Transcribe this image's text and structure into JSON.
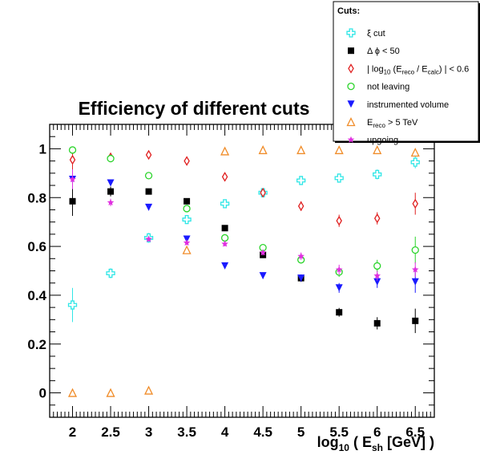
{
  "chart_data": {
    "type": "scatter",
    "title": "Efficiency of different cuts",
    "xlabel": {
      "base": "log",
      "sub": "10",
      "mid": " ( E",
      "sub2": "sh",
      "tail": " [GeV] )"
    },
    "ylabel": "",
    "xlim": [
      1.7,
      6.75
    ],
    "ylim": [
      -0.1,
      1.1
    ],
    "xticks": [
      "2",
      "2.5",
      "3",
      "3.5",
      "4",
      "4.5",
      "5",
      "5.5",
      "6",
      "6.5"
    ],
    "yticks": [
      "0",
      "0.2",
      "0.4",
      "0.6",
      "0.8",
      "1"
    ],
    "grid": false,
    "legend": {
      "position": "top-right",
      "header": "Cuts:",
      "entries": [
        {
          "key": "xi",
          "parts": [
            {
              "t": "ξ cut"
            }
          ]
        },
        {
          "key": "dphi",
          "parts": [
            {
              "t": "Δ ϕ < 50"
            }
          ]
        },
        {
          "key": "logratio",
          "parts": [
            {
              "t": "| log"
            },
            {
              "t": "10",
              "sub": true
            },
            {
              "t": " (E"
            },
            {
              "t": "reco",
              "sub": true
            },
            {
              "t": " / E"
            },
            {
              "t": "calc",
              "sub": true
            },
            {
              "t": ") | < 0.6"
            }
          ]
        },
        {
          "key": "notleaving",
          "parts": [
            {
              "t": "not leaving"
            }
          ]
        },
        {
          "key": "instrumented",
          "parts": [
            {
              "t": "instrumented volume"
            }
          ]
        },
        {
          "key": "ereco",
          "parts": [
            {
              "t": "E"
            },
            {
              "t": "reco",
              "sub": true
            },
            {
              "t": " > 5 TeV"
            }
          ]
        },
        {
          "key": "upgoing",
          "parts": [
            {
              "t": "upgoing"
            }
          ]
        }
      ]
    },
    "series": [
      {
        "key": "xi",
        "marker": "open-cross",
        "color": "#2ee6e6",
        "x": [
          2,
          2.5,
          3,
          3.5,
          4,
          4.5,
          5,
          5.5,
          6,
          6.5
        ],
        "y": [
          0.36,
          0.49,
          0.635,
          0.71,
          0.775,
          0.82,
          0.87,
          0.88,
          0.895,
          0.945
        ],
        "err": [
          0.07,
          0.02,
          0.02,
          0.015,
          0.012,
          0.01,
          0.015,
          0.015,
          0.02,
          0.025
        ]
      },
      {
        "key": "dphi",
        "marker": "filled-square",
        "color": "#000000",
        "x": [
          2,
          2.5,
          3,
          3.5,
          4,
          4.5,
          5,
          5.5,
          6,
          6.5
        ],
        "y": [
          0.785,
          0.825,
          0.825,
          0.785,
          0.675,
          0.565,
          0.47,
          0.33,
          0.285,
          0.295
        ],
        "err": [
          0.06,
          0.02,
          0.01,
          0.006,
          0.012,
          0.012,
          0.015,
          0.018,
          0.025,
          0.05
        ]
      },
      {
        "key": "logratio",
        "marker": "open-diamond",
        "color": "#e02020",
        "x": [
          2,
          2.5,
          3,
          3.5,
          4,
          4.5,
          5,
          5.5,
          6,
          6.5
        ],
        "y": [
          0.955,
          0.965,
          0.975,
          0.95,
          0.885,
          0.82,
          0.765,
          0.705,
          0.715,
          0.775
        ],
        "err": [
          0.04,
          0.008,
          0.006,
          0.006,
          0.008,
          0.01,
          0.02,
          0.025,
          0.025,
          0.045
        ]
      },
      {
        "key": "notleaving",
        "marker": "open-circle",
        "color": "#2ad42a",
        "x": [
          2,
          2.5,
          3,
          3.5,
          4,
          4.5,
          5,
          5.5,
          6,
          6.5
        ],
        "y": [
          0.995,
          0.96,
          0.89,
          0.755,
          0.635,
          0.595,
          0.545,
          0.495,
          0.52,
          0.585
        ],
        "err": [
          0.005,
          0.01,
          0.008,
          0.01,
          0.01,
          0.012,
          0.015,
          0.02,
          0.025,
          0.055
        ]
      },
      {
        "key": "instrumented",
        "marker": "filled-triangle-down",
        "color": "#1a1aff",
        "x": [
          2,
          2.5,
          3,
          3.5,
          4,
          4.5,
          5,
          5.5,
          6,
          6.5
        ],
        "y": [
          0.875,
          0.86,
          0.76,
          0.63,
          0.52,
          0.48,
          0.47,
          0.43,
          0.455,
          0.455
        ],
        "err": [
          0.04,
          0.01,
          0.012,
          0.008,
          0.01,
          0.012,
          0.015,
          0.02,
          0.025,
          0.045
        ]
      },
      {
        "key": "ereco",
        "marker": "open-triangle-up",
        "color": "#f08c28",
        "x": [
          2,
          2.5,
          3,
          3.5,
          4,
          4.5,
          5,
          5.5,
          6,
          6.5
        ],
        "y": [
          0.0,
          0.0,
          0.01,
          0.585,
          0.99,
          0.995,
          0.995,
          0.995,
          0.995,
          0.985
        ],
        "err": [
          0,
          0,
          0,
          0,
          0,
          0,
          0,
          0,
          0,
          0
        ]
      },
      {
        "key": "upgoing",
        "marker": "star",
        "color": "#e030e0",
        "x": [
          2,
          2.5,
          3,
          3.5,
          4,
          4.5,
          5,
          5.5,
          6,
          6.5
        ],
        "y": [
          0.875,
          0.78,
          0.63,
          0.615,
          0.61,
          0.575,
          0.56,
          0.505,
          0.48,
          0.505
        ],
        "err": [
          0.04,
          0.015,
          0.01,
          0.01,
          0.01,
          0.012,
          0.015,
          0.02,
          0.02,
          0.03
        ]
      }
    ]
  }
}
